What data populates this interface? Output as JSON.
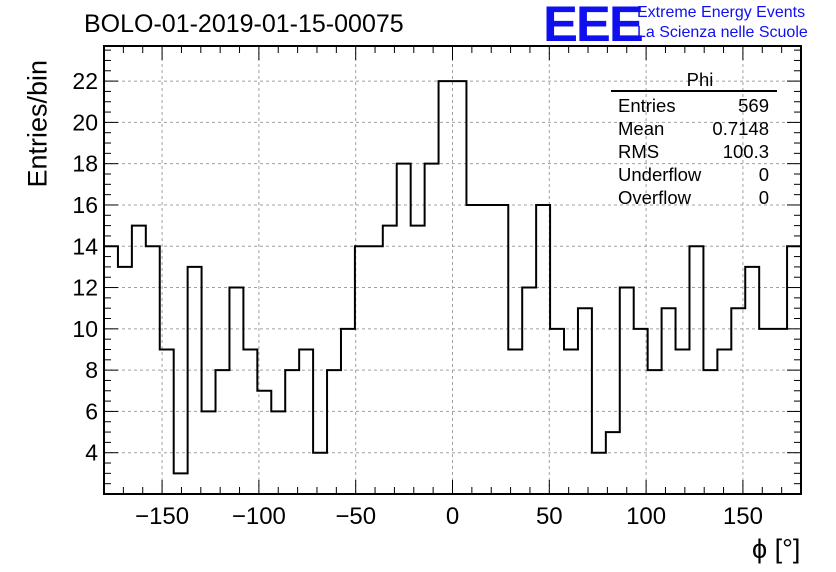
{
  "header": {
    "title": "BOLO-01-2019-01-15-00075",
    "logo": "EEE",
    "logo_line1": "Extreme Energy Events",
    "logo_line2": "La Scienza nelle Scuole"
  },
  "stats_box": {
    "name": "Phi",
    "rows": [
      {
        "label": "Entries",
        "value": "569"
      },
      {
        "label": "Mean",
        "value": "0.7148"
      },
      {
        "label": "RMS",
        "value": "100.3"
      },
      {
        "label": "Underflow",
        "value": "0"
      },
      {
        "label": "Overflow",
        "value": "0"
      }
    ]
  },
  "chart_data": {
    "type": "histogram",
    "xlabel": "ϕ [°]",
    "ylabel": "Entries/bin",
    "xlim": [
      -180,
      180
    ],
    "ylim": [
      2,
      23.7
    ],
    "bin_edges_start": -180,
    "bin_width": 7.2,
    "values": [
      14,
      13,
      15,
      14,
      9,
      3,
      13,
      6,
      8,
      12,
      9,
      7,
      6,
      8,
      9,
      4,
      8,
      10,
      14,
      14,
      15,
      18,
      15,
      18,
      22,
      22,
      16,
      16,
      16,
      9,
      12,
      16,
      10,
      9,
      11,
      4,
      5,
      12,
      10,
      8,
      11,
      9,
      14,
      8,
      9,
      11,
      13,
      10,
      10,
      14
    ],
    "xticks": [
      -150,
      -100,
      -50,
      0,
      50,
      100,
      150
    ],
    "yticks": [
      4,
      6,
      8,
      10,
      12,
      14,
      16,
      18,
      20,
      22
    ],
    "grid": true,
    "line_color": "#000000"
  }
}
